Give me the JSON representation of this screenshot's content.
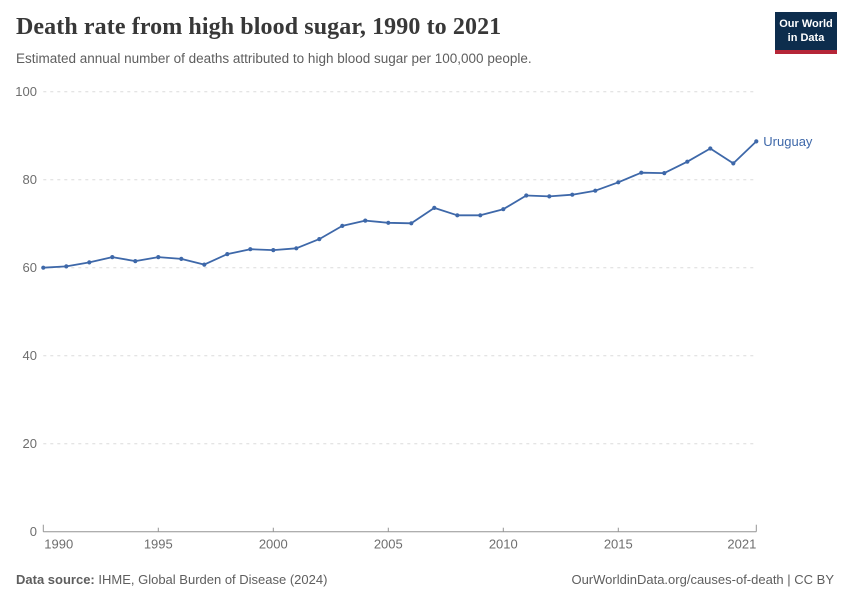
{
  "header": {
    "title": "Death rate from high blood sugar, 1990 to 2021",
    "subtitle": "Estimated annual number of deaths attributed to high blood sugar per 100,000 people.",
    "logo": {
      "line1": "Our World",
      "line2": "in Data"
    }
  },
  "chart_data": {
    "type": "line",
    "title": "Death rate from high blood sugar, 1990 to 2021",
    "xlabel": "",
    "ylabel": "",
    "x": [
      1990,
      1991,
      1992,
      1993,
      1994,
      1995,
      1996,
      1997,
      1998,
      1999,
      2000,
      2001,
      2002,
      2003,
      2004,
      2005,
      2006,
      2007,
      2008,
      2009,
      2010,
      2011,
      2012,
      2013,
      2014,
      2015,
      2016,
      2017,
      2018,
      2019,
      2020,
      2021
    ],
    "series": [
      {
        "name": "Uruguay",
        "color": "#3e68a9",
        "values": [
          60.0,
          60.3,
          61.2,
          62.4,
          61.5,
          62.4,
          62.0,
          60.7,
          63.1,
          64.2,
          64.0,
          64.4,
          66.5,
          69.5,
          70.7,
          70.2,
          70.1,
          73.6,
          71.9,
          71.9,
          73.3,
          76.4,
          76.2,
          76.6,
          77.5,
          79.4,
          81.6,
          81.5,
          84.1,
          87.1,
          83.7,
          88.7
        ]
      }
    ],
    "xlim": [
      1990,
      2021
    ],
    "ylim": [
      0,
      100
    ],
    "x_ticks": [
      1990,
      1995,
      2000,
      2005,
      2010,
      2015,
      2021
    ],
    "y_ticks": [
      0,
      20,
      40,
      60,
      80,
      100
    ],
    "grid": "horizontal-dashed",
    "legend": "end-of-line-label"
  },
  "footer": {
    "source_label": "Data source:",
    "source_text": "IHME, Global Burden of Disease (2024)",
    "link_text": "OurWorldinData.org/causes-of-death | CC BY"
  },
  "colors": {
    "series_blue": "#3e68a9",
    "logo_navy": "#0d2d4d",
    "logo_red": "#b52638",
    "gridline": "#dcdcdc",
    "axis": "#949494",
    "tick_text": "#6e6e6e",
    "title_text": "#383838",
    "subtitle_text": "#5e5e5e"
  }
}
